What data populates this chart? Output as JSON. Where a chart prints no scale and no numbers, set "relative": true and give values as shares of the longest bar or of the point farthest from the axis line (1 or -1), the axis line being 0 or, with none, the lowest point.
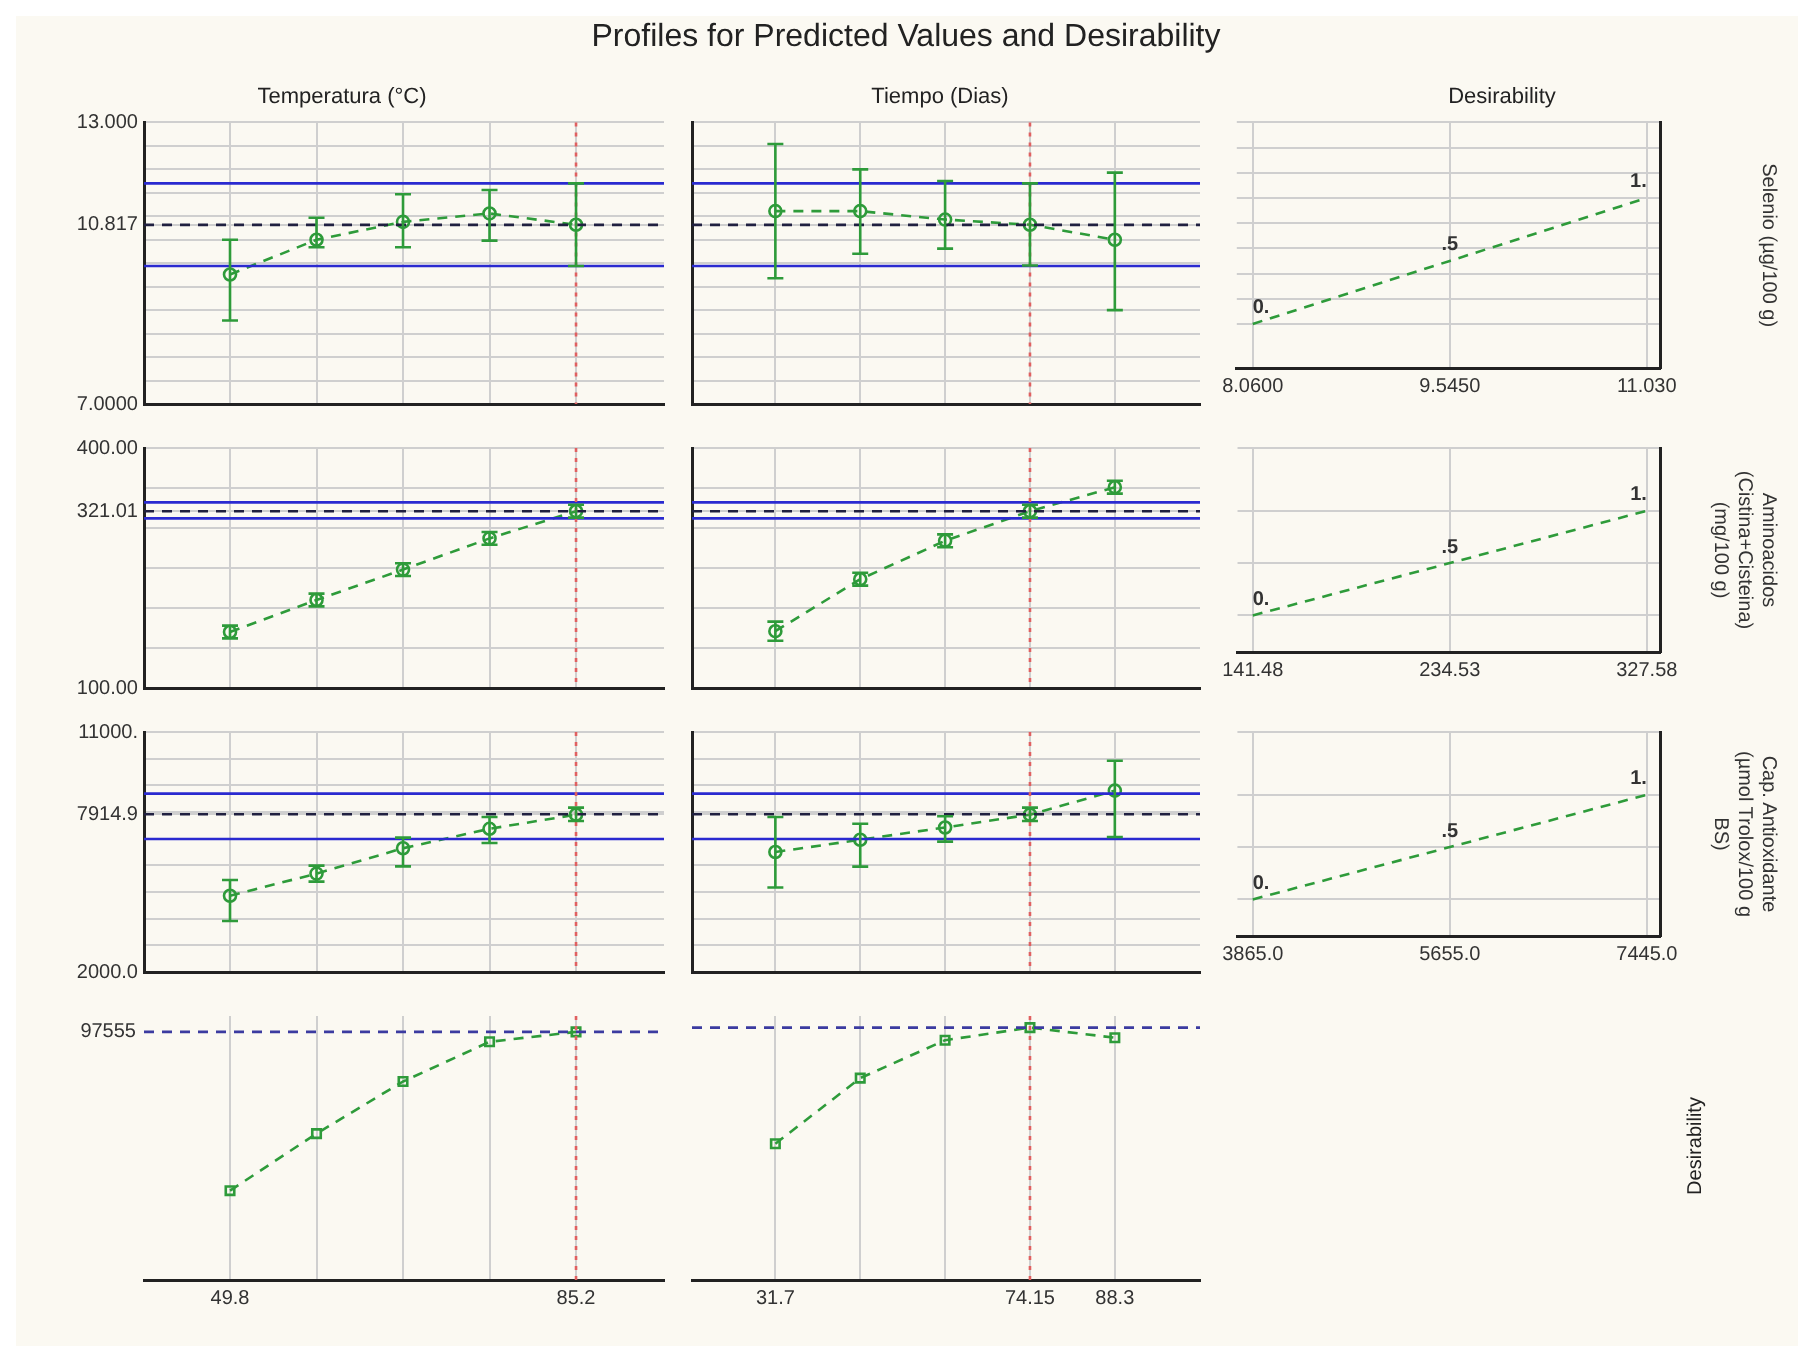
{
  "chart_data": [
    {
      "type": "other",
      "title": "Profiles for Predicted Values and Desirability"
    },
    {
      "type": "line",
      "title": "Temperatura (°C)",
      "x": [
        49.8,
        58.65,
        67.5,
        76.35,
        85.2
      ],
      "xlim": [
        41,
        94.2
      ],
      "xticks": [
        {
          "value": 49.8,
          "label": null
        },
        {
          "value": 58.65,
          "label": null
        },
        {
          "value": 67.5,
          "label": null
        },
        {
          "value": 76.35,
          "label": null
        },
        {
          "value": 85.2,
          "label": null
        }
      ],
      "ylim": [
        7,
        13
      ],
      "yticks": [
        {
          "value": 7,
          "label": "7.0000"
        },
        {
          "value": 7.5,
          "label": null
        },
        {
          "value": 8,
          "label": null
        },
        {
          "value": 8.5,
          "label": null
        },
        {
          "value": 9,
          "label": null
        },
        {
          "value": 9.5,
          "label": null
        },
        {
          "value": 10,
          "label": null
        },
        {
          "value": 10.5,
          "label": null
        },
        10.817,
        {
          "value": 11,
          "label": null
        },
        {
          "value": 11.5,
          "label": null
        },
        {
          "value": 12,
          "label": null
        },
        {
          "value": 12.5,
          "label": null
        },
        {
          "value": 13,
          "label": "13.000"
        }
      ],
      "tick_labels": "y",
      "grid": true,
      "marker": "circle",
      "line_style": "dashed",
      "series": [
        {
          "color": "#2e9b3a",
          "values": [
            9.76,
            10.5,
            10.88,
            11.06,
            10.82
          ],
          "errors": [
            [
              8.78,
              10.5
            ],
            [
              10.34,
              10.97
            ],
            [
              10.34,
              11.47
            ],
            [
              10.48,
              11.56
            ],
            [
              9.94,
              11.7
            ]
          ]
        }
      ],
      "ref_lines": [
        {
          "axis": "y",
          "value": 11.7,
          "color": "#2a2ad0",
          "line_style": "solid"
        },
        {
          "axis": "y",
          "value": 9.94,
          "color": "#2a2ad0",
          "line_style": "solid"
        },
        {
          "axis": "y",
          "value": 10.817,
          "color": "#202040",
          "line_style": "dashed"
        },
        {
          "axis": "x",
          "value": 85.2,
          "color": "#e06060",
          "line_style": "dotted"
        }
      ]
    },
    {
      "type": "line",
      "title": "Tiempo (Dias)",
      "x": [
        31.7,
        45.85,
        60,
        74.15,
        88.3
      ],
      "xlim": [
        17.8,
        102.5
      ],
      "xticks": [
        {
          "value": 31.7,
          "label": null
        },
        {
          "value": 45.85,
          "label": null
        },
        {
          "value": 60,
          "label": null
        },
        {
          "value": 74.15,
          "label": null
        },
        {
          "value": 88.3,
          "label": null
        }
      ],
      "ylim": [
        7,
        13
      ],
      "yticks": [
        {
          "value": 7,
          "label": null
        },
        {
          "value": 7.5,
          "label": null
        },
        {
          "value": 8,
          "label": null
        },
        {
          "value": 8.5,
          "label": null
        },
        {
          "value": 9,
          "label": null
        },
        {
          "value": 9.5,
          "label": null
        },
        {
          "value": 10,
          "label": null
        },
        {
          "value": 10.5,
          "label": null
        },
        {
          "value": 10.817,
          "label": null
        },
        {
          "value": 11,
          "label": null
        },
        {
          "value": 11.5,
          "label": null
        },
        {
          "value": 12,
          "label": null
        },
        {
          "value": 12.5,
          "label": null
        },
        {
          "value": 13,
          "label": null
        }
      ],
      "tick_labels": false,
      "grid": true,
      "marker": "circle",
      "line_style": "dashed",
      "series": [
        {
          "color": "#2e9b3a",
          "values": [
            11.11,
            11.11,
            10.93,
            10.82,
            10.5
          ],
          "errors": [
            [
              9.68,
              12.54
            ],
            [
              10.2,
              12.0
            ],
            [
              10.31,
              11.75
            ],
            [
              9.95,
              11.7
            ],
            [
              9.0,
              11.93
            ]
          ]
        }
      ],
      "ref_lines": [
        {
          "axis": "y",
          "value": 11.7,
          "color": "#2a2ad0",
          "line_style": "solid"
        },
        {
          "axis": "y",
          "value": 9.94,
          "color": "#2a2ad0",
          "line_style": "solid"
        },
        {
          "axis": "y",
          "value": 10.817,
          "color": "#202040",
          "line_style": "dashed"
        },
        {
          "axis": "x",
          "value": 74.15,
          "color": "#e06060",
          "line_style": "dotted"
        }
      ]
    },
    {
      "type": "line",
      "title": "Desirability",
      "x": [
        8.06,
        9.545,
        11.03
      ],
      "xlim": [
        7.94,
        11.13
      ],
      "xticks": [
        {
          "value": 8.06,
          "label": "8.0600"
        },
        {
          "value": 9.545,
          "label": "9.5450"
        },
        {
          "value": 11.03,
          "label": "11.030"
        }
      ],
      "tick_labels": "x",
      "grid": true,
      "marker": "none",
      "line_style": "dashed",
      "y2label": "Selenio (µg/100 g)",
      "series": [
        {
          "color": "#2e9b3a",
          "axis": "y2",
          "values": [
            0,
            0.5,
            1
          ],
          "value_labels": [
            "0.",
            ".5",
            "1."
          ]
        }
      ]
    },
    {
      "type": "line",
      "x": [
        49.8,
        58.65,
        67.5,
        76.35,
        85.2
      ],
      "xlim": [
        41,
        94.2
      ],
      "xticks": [
        {
          "value": 49.8,
          "label": null
        },
        {
          "value": 58.65,
          "label": null
        },
        {
          "value": 67.5,
          "label": null
        },
        {
          "value": 76.35,
          "label": null
        },
        {
          "value": 85.2,
          "label": null
        }
      ],
      "ylim": [
        100,
        400
      ],
      "yticks": [
        {
          "value": 100,
          "label": "100.00"
        },
        {
          "value": 150,
          "label": null
        },
        {
          "value": 200,
          "label": null
        },
        {
          "value": 250,
          "label": null
        },
        {
          "value": 300,
          "label": null
        },
        321.01,
        {
          "value": 350,
          "label": null
        },
        {
          "value": 400,
          "label": "400.00"
        }
      ],
      "tick_labels": "y",
      "grid": true,
      "marker": "circle",
      "line_style": "dashed",
      "series": [
        {
          "color": "#2e9b3a",
          "values": [
            170,
            210,
            248,
            287,
            321
          ],
          "errors": [
            8,
            8,
            8,
            8,
            8
          ]
        }
      ],
      "ref_lines": [
        {
          "axis": "y",
          "value": 332,
          "color": "#2a2ad0",
          "line_style": "solid"
        },
        {
          "axis": "y",
          "value": 312,
          "color": "#2a2ad0",
          "line_style": "solid"
        },
        {
          "axis": "y",
          "value": 321.01,
          "color": "#202040",
          "line_style": "dashed"
        },
        {
          "axis": "x",
          "value": 85.2,
          "color": "#e06060",
          "line_style": "dotted"
        }
      ]
    },
    {
      "type": "line",
      "x": [
        31.7,
        45.85,
        60,
        74.15,
        88.3
      ],
      "xlim": [
        17.8,
        102.5
      ],
      "xticks": [
        {
          "value": 31.7,
          "label": null
        },
        {
          "value": 45.85,
          "label": null
        },
        {
          "value": 60,
          "label": null
        },
        {
          "value": 74.15,
          "label": null
        },
        {
          "value": 88.3,
          "label": null
        }
      ],
      "ylim": [
        100,
        400
      ],
      "yticks": [
        {
          "value": 100,
          "label": null
        },
        {
          "value": 150,
          "label": null
        },
        {
          "value": 200,
          "label": null
        },
        {
          "value": 250,
          "label": null
        },
        {
          "value": 300,
          "label": null
        },
        {
          "value": 321.01,
          "label": null
        },
        {
          "value": 350,
          "label": null
        },
        {
          "value": 400,
          "label": null
        }
      ],
      "tick_labels": false,
      "grid": true,
      "marker": "circle",
      "line_style": "dashed",
      "series": [
        {
          "color": "#2e9b3a",
          "values": [
            171,
            236,
            284,
            321,
            351
          ],
          "errors": [
            12,
            8,
            8,
            8,
            8
          ]
        }
      ],
      "ref_lines": [
        {
          "axis": "y",
          "value": 332,
          "color": "#2a2ad0",
          "line_style": "solid"
        },
        {
          "axis": "y",
          "value": 312,
          "color": "#2a2ad0",
          "line_style": "solid"
        },
        {
          "axis": "y",
          "value": 321.01,
          "color": "#202040",
          "line_style": "dashed"
        },
        {
          "axis": "x",
          "value": 74.15,
          "color": "#e06060",
          "line_style": "dotted"
        }
      ]
    },
    {
      "type": "line",
      "x": [
        141.48,
        234.53,
        327.58
      ],
      "xlim": [
        134.3,
        333.8
      ],
      "xticks": [
        {
          "value": 141.48,
          "label": "141.48"
        },
        {
          "value": 234.53,
          "label": "234.53"
        },
        {
          "value": 327.58,
          "label": "327.58"
        }
      ],
      "tick_labels": "x",
      "grid": true,
      "marker": "none",
      "line_style": "dashed",
      "y2label": "Aminoacidos (Cistina+Cisteina) (mg/100 g)",
      "series": [
        {
          "color": "#2e9b3a",
          "axis": "y2",
          "values": [
            0,
            0.5,
            1
          ],
          "value_labels": [
            "0.",
            ".5",
            "1."
          ]
        }
      ]
    },
    {
      "type": "line",
      "x": [
        49.8,
        58.65,
        67.5,
        76.35,
        85.2
      ],
      "xlim": [
        41,
        94.2
      ],
      "xticks": [
        {
          "value": 49.8,
          "label": null
        },
        {
          "value": 58.65,
          "label": null
        },
        {
          "value": 67.5,
          "label": null
        },
        {
          "value": 76.35,
          "label": null
        },
        {
          "value": 85.2,
          "label": null
        }
      ],
      "ylim": [
        2000,
        11000
      ],
      "yticks": [
        {
          "value": 2000,
          "label": "2000.0"
        },
        {
          "value": 3000,
          "label": null
        },
        {
          "value": 4000,
          "label": null
        },
        {
          "value": 5000,
          "label": null
        },
        {
          "value": 6000,
          "label": null
        },
        {
          "value": 7000,
          "label": null
        },
        7914.9,
        {
          "value": 8000,
          "label": null
        },
        {
          "value": 9000,
          "label": null
        },
        {
          "value": 10000,
          "label": null
        },
        {
          "value": 11000,
          "label": "11000."
        }
      ],
      "tick_labels": "y",
      "grid": true,
      "marker": "circle",
      "line_style": "dashed",
      "series": [
        {
          "color": "#2e9b3a",
          "values": [
            4860,
            5690,
            6640,
            7370,
            7900
          ],
          "errors": [
            [
              3910,
              5450
            ],
            [
              5390,
              5990
            ],
            [
              5960,
              7040
            ],
            [
              6840,
              7810
            ],
            [
              7665,
              8165
            ]
          ]
        }
      ],
      "ref_lines": [
        {
          "axis": "y",
          "value": 8690,
          "color": "#2a2ad0",
          "line_style": "solid"
        },
        {
          "axis": "y",
          "value": 6990,
          "color": "#2a2ad0",
          "line_style": "solid"
        },
        {
          "axis": "y",
          "value": 7914.9,
          "color": "#202040",
          "line_style": "dashed"
        },
        {
          "axis": "x",
          "value": 85.2,
          "color": "#e06060",
          "line_style": "dotted"
        }
      ]
    },
    {
      "type": "line",
      "x": [
        31.7,
        45.85,
        60,
        74.15,
        88.3
      ],
      "xlim": [
        17.8,
        102.5
      ],
      "xticks": [
        {
          "value": 31.7,
          "label": null
        },
        {
          "value": 45.85,
          "label": null
        },
        {
          "value": 60,
          "label": null
        },
        {
          "value": 74.15,
          "label": null
        },
        {
          "value": 88.3,
          "label": null
        }
      ],
      "ylim": [
        2000,
        11000
      ],
      "yticks": [
        {
          "value": 2000,
          "label": null
        },
        {
          "value": 3000,
          "label": null
        },
        {
          "value": 4000,
          "label": null
        },
        {
          "value": 5000,
          "label": null
        },
        {
          "value": 6000,
          "label": null
        },
        {
          "value": 7000,
          "label": null
        },
        {
          "value": 7914.9,
          "label": null
        },
        {
          "value": 8000,
          "label": null
        },
        {
          "value": 9000,
          "label": null
        },
        {
          "value": 10000,
          "label": null
        },
        {
          "value": 11000,
          "label": null
        }
      ],
      "tick_labels": false,
      "grid": true,
      "marker": "circle",
      "line_style": "dashed",
      "series": [
        {
          "color": "#2e9b3a",
          "values": [
            6500,
            6960,
            7420,
            7900,
            8800
          ],
          "errors": [
            [
              5170,
              7810
            ],
            [
              5950,
              7560
            ],
            [
              6890,
              7840
            ],
            [
              7665,
              8165
            ],
            [
              7060,
              9920
            ]
          ]
        }
      ],
      "ref_lines": [
        {
          "axis": "y",
          "value": 8690,
          "color": "#2a2ad0",
          "line_style": "solid"
        },
        {
          "axis": "y",
          "value": 6990,
          "color": "#2a2ad0",
          "line_style": "solid"
        },
        {
          "axis": "y",
          "value": 7914.9,
          "color": "#202040",
          "line_style": "dashed"
        },
        {
          "axis": "x",
          "value": 74.15,
          "color": "#e06060",
          "line_style": "dotted"
        }
      ]
    },
    {
      "type": "line",
      "x": [
        3865,
        5655,
        7445
      ],
      "xlim": [
        3726,
        7564
      ],
      "xticks": [
        {
          "value": 3865,
          "label": "3865.0"
        },
        {
          "value": 5655,
          "label": "5655.0"
        },
        {
          "value": 7445,
          "label": "7445.0"
        }
      ],
      "tick_labels": "x",
      "grid": true,
      "marker": "none",
      "line_style": "dashed",
      "y2label": "Cap. Antioxidante (µmol Trolox/100 g BS)",
      "series": [
        {
          "color": "#2e9b3a",
          "axis": "y2",
          "values": [
            0,
            0.5,
            1
          ],
          "value_labels": [
            "0.",
            ".5",
            "1."
          ]
        }
      ]
    },
    {
      "type": "line",
      "relative": true,
      "x": [
        49.8,
        58.65,
        67.5,
        76.35,
        85.2
      ],
      "xlim": [
        41,
        94.2
      ],
      "xticks": [
        49.8,
        {
          "value": 58.65,
          "label": null
        },
        {
          "value": 67.5,
          "label": null
        },
        {
          "value": 76.35,
          "label": null
        },
        85.2
      ],
      "tick_labels": "x",
      "grid": true,
      "marker": "square",
      "line_style": "dashed",
      "series": [
        {
          "color": "#2e9b3a",
          "values": [
            0.36,
            0.59,
            0.8,
            0.96,
            1
          ]
        }
      ],
      "annotations": [
        "97555"
      ],
      "ref_lines": [
        {
          "axis": "y",
          "value": 1,
          "color": "#3b3ba0",
          "line_style": "dashed"
        },
        {
          "axis": "x",
          "value": 85.2,
          "color": "#e06060",
          "line_style": "dotted"
        }
      ]
    },
    {
      "type": "line",
      "relative": true,
      "x": [
        31.7,
        45.85,
        60,
        74.15,
        88.3
      ],
      "xlim": [
        17.8,
        102.5
      ],
      "xticks": [
        31.7,
        {
          "value": 45.85,
          "label": null
        },
        {
          "value": 60,
          "label": null
        },
        74.15,
        88.3
      ],
      "tick_labels": "x",
      "grid": true,
      "marker": "square",
      "line_style": "dashed",
      "series": [
        {
          "color": "#2e9b3a",
          "values": [
            0.54,
            0.8,
            0.95,
            1,
            0.96
          ]
        }
      ],
      "ref_lines": [
        {
          "axis": "y",
          "value": 1,
          "color": "#3b3ba0",
          "line_style": "dashed"
        },
        {
          "axis": "x",
          "value": 74.15,
          "color": "#e06060",
          "line_style": "dotted"
        }
      ]
    },
    {
      "type": "other",
      "ylabel": "Desirability"
    }
  ]
}
